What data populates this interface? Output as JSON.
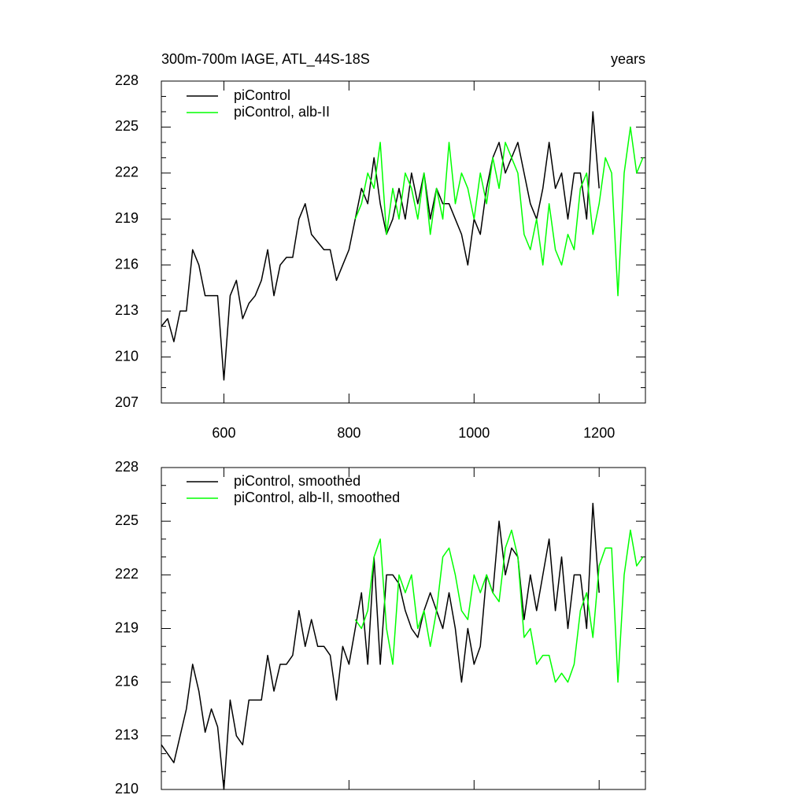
{
  "chart_data": [
    {
      "type": "line",
      "title": "300m-700m IAGE, ATL_44S-18S",
      "right_string": "years",
      "x": [
        500,
        510,
        520,
        530,
        540,
        550,
        560,
        570,
        580,
        590,
        600,
        610,
        620,
        630,
        640,
        650,
        660,
        670,
        680,
        690,
        700,
        710,
        720,
        730,
        740,
        750,
        760,
        770,
        780,
        790,
        800,
        810,
        820,
        830,
        840,
        850,
        860,
        870,
        880,
        890,
        900,
        910,
        920,
        930,
        940,
        950,
        960,
        970,
        980,
        990,
        1000,
        1010,
        1020,
        1030,
        1040,
        1050,
        1060,
        1070,
        1080,
        1090,
        1100,
        1110,
        1120,
        1130,
        1140,
        1150,
        1160,
        1170,
        1180,
        1190,
        1200,
        1210,
        1220,
        1230,
        1240,
        1250,
        1260,
        1270
      ],
      "series": [
        {
          "name": "piControl",
          "color": "#000000",
          "values": [
            212,
            212.5,
            211,
            213,
            213,
            217,
            216,
            214,
            214,
            214,
            208.5,
            214,
            215,
            212.5,
            213.5,
            214,
            215,
            217,
            214,
            216,
            216.5,
            216.5,
            219,
            220,
            218,
            217.5,
            217,
            217,
            215,
            216,
            217,
            219,
            221,
            220,
            223,
            220,
            218,
            219,
            221,
            219,
            222,
            220,
            222,
            219,
            221,
            220,
            220,
            219,
            218,
            216,
            219,
            218,
            221,
            223,
            224,
            222,
            223,
            224,
            222,
            220,
            219,
            221,
            224,
            221,
            222,
            219,
            222,
            222,
            219,
            226,
            221,
            null,
            null,
            null,
            null,
            null,
            null,
            null
          ]
        },
        {
          "name": "piControl, alb-II",
          "color": "#00ff00",
          "values": [
            null,
            null,
            null,
            null,
            null,
            null,
            null,
            null,
            null,
            null,
            null,
            null,
            null,
            null,
            null,
            null,
            null,
            null,
            null,
            null,
            null,
            null,
            null,
            null,
            null,
            null,
            null,
            null,
            null,
            null,
            null,
            219,
            220,
            222,
            221,
            224,
            218,
            221,
            219,
            222,
            221,
            219,
            222,
            218,
            221,
            219,
            224,
            220,
            222,
            221,
            219,
            222,
            220,
            223,
            221,
            224,
            223,
            222,
            218,
            217,
            219,
            216,
            220,
            217,
            216,
            218,
            217,
            221,
            222,
            218,
            220,
            223,
            222,
            214,
            222,
            225,
            222,
            223
          ]
        }
      ],
      "xlim": [
        500,
        1274
      ],
      "xticks": [
        600,
        800,
        1000,
        1200
      ],
      "ylim": [
        207,
        228
      ],
      "yticks": [
        207,
        210,
        213,
        216,
        219,
        222,
        225,
        228
      ]
    },
    {
      "type": "line",
      "x": [
        500,
        510,
        520,
        530,
        540,
        550,
        560,
        570,
        580,
        590,
        600,
        610,
        620,
        630,
        640,
        650,
        660,
        670,
        680,
        690,
        700,
        710,
        720,
        730,
        740,
        750,
        760,
        770,
        780,
        790,
        800,
        810,
        820,
        830,
        840,
        850,
        860,
        870,
        880,
        890,
        900,
        910,
        920,
        930,
        940,
        950,
        960,
        970,
        980,
        990,
        1000,
        1010,
        1020,
        1030,
        1040,
        1050,
        1060,
        1070,
        1080,
        1090,
        1100,
        1110,
        1120,
        1130,
        1140,
        1150,
        1160,
        1170,
        1180,
        1190,
        1200,
        1210,
        1220,
        1230,
        1240,
        1250,
        1260,
        1270
      ],
      "series": [
        {
          "name": "piControl, smoothed",
          "color": "#000000",
          "values": [
            212.5,
            212,
            211.5,
            213,
            214.5,
            217,
            215.5,
            213.2,
            214.5,
            213.5,
            210,
            215,
            213,
            212.5,
            215,
            215,
            215,
            217.5,
            215.5,
            217,
            217,
            217.5,
            220,
            218,
            219.5,
            218,
            218,
            217.5,
            215,
            218,
            217,
            219,
            221,
            217,
            223,
            217,
            222,
            222,
            221.5,
            220,
            219,
            218.5,
            220,
            221,
            220,
            219,
            221,
            219,
            216,
            219,
            217,
            218,
            222,
            221,
            225,
            222,
            223.5,
            223,
            219.5,
            222,
            220,
            222,
            224,
            220,
            223,
            219,
            222,
            222,
            219,
            226,
            221,
            null,
            null,
            null,
            null,
            null,
            null,
            null
          ]
        },
        {
          "name": "piControl, alb-II, smoothed",
          "color": "#00ff00",
          "values": [
            null,
            null,
            null,
            null,
            null,
            null,
            null,
            null,
            null,
            null,
            null,
            null,
            null,
            null,
            null,
            null,
            null,
            null,
            null,
            null,
            null,
            null,
            null,
            null,
            null,
            null,
            null,
            null,
            null,
            null,
            null,
            219.5,
            219,
            220,
            223,
            224,
            219,
            217,
            222,
            221,
            222,
            219,
            220,
            218,
            220,
            223,
            223.5,
            222,
            220,
            219.5,
            222,
            221,
            222,
            221,
            220.5,
            223.5,
            224.5,
            223,
            218.5,
            219,
            217,
            217.5,
            217.5,
            216,
            216.5,
            216,
            217,
            220,
            221,
            218.5,
            222.5,
            223.5,
            223.5,
            216,
            222,
            224.5,
            222.5,
            223
          ]
        }
      ],
      "xlim": [
        500,
        1274
      ],
      "xticks": [
        600,
        800,
        1000,
        1200
      ],
      "ylim": [
        210,
        228
      ],
      "yticks": [
        210,
        213,
        216,
        219,
        222,
        225,
        228
      ]
    }
  ]
}
